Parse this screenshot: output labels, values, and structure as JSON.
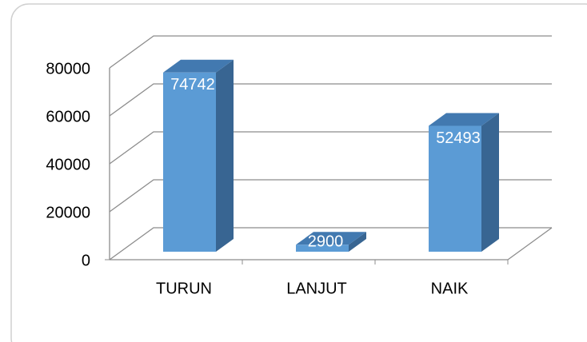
{
  "chart_data": {
    "type": "bar3d",
    "categories": [
      "TURUN",
      "LANJUT",
      "NAIK"
    ],
    "values": [
      74742,
      2900,
      52493
    ],
    "color": "#5b9bd5",
    "ylim": [
      0,
      80000
    ],
    "yticks": [
      0,
      20000,
      40000,
      60000,
      80000
    ],
    "grid": true
  }
}
